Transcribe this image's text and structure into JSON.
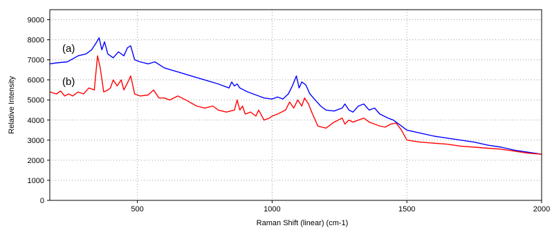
{
  "chart_data": {
    "type": "line",
    "title": "",
    "xlabel": "Raman Shift (linear) (cm-1)",
    "ylabel": "Relative Intensity",
    "xlim": [
      175,
      2000
    ],
    "ylim": [
      0,
      9500
    ],
    "x_ticks": [
      500,
      1000,
      1500,
      2000
    ],
    "y_ticks": [
      0,
      1000,
      2000,
      3000,
      4000,
      5000,
      6000,
      7000,
      8000,
      9000
    ],
    "grid": true,
    "grid_style": "dotted",
    "annotations": [
      {
        "text": "(a)",
        "series": "a"
      },
      {
        "text": "(b)",
        "series": "b"
      }
    ],
    "series": [
      {
        "key": "a",
        "color": "#0000ff",
        "x": [
          175,
          200,
          240,
          280,
          310,
          330,
          345,
          358,
          368,
          378,
          390,
          410,
          430,
          450,
          463,
          475,
          490,
          510,
          540,
          565,
          600,
          650,
          700,
          750,
          800,
          840,
          850,
          860,
          870,
          880,
          895,
          910,
          930,
          950,
          970,
          1000,
          1020,
          1040,
          1060,
          1075,
          1090,
          1100,
          1110,
          1125,
          1140,
          1160,
          1180,
          1200,
          1230,
          1260,
          1270,
          1285,
          1300,
          1320,
          1340,
          1360,
          1380,
          1400,
          1430,
          1450,
          1470,
          1500,
          1550,
          1600,
          1650,
          1700,
          1750,
          1800,
          1850,
          1900,
          1950,
          2000
        ],
        "y": [
          6800,
          6850,
          6900,
          7200,
          7300,
          7500,
          7800,
          8100,
          7500,
          7900,
          7300,
          7100,
          7400,
          7200,
          7600,
          7700,
          7000,
          6900,
          6800,
          6900,
          6600,
          6400,
          6200,
          6000,
          5800,
          5600,
          5900,
          5700,
          5800,
          5600,
          5500,
          5400,
          5300,
          5200,
          5100,
          5050,
          5150,
          5050,
          5300,
          5700,
          6200,
          5600,
          5900,
          5750,
          5300,
          5000,
          4700,
          4500,
          4450,
          4600,
          4800,
          4500,
          4400,
          4700,
          4800,
          4500,
          4600,
          4300,
          4100,
          4000,
          3800,
          3500,
          3350,
          3200,
          3100,
          3000,
          2900,
          2750,
          2650,
          2500,
          2400,
          2300
        ]
      },
      {
        "key": "b",
        "color": "#ff0000",
        "x": [
          175,
          200,
          215,
          230,
          245,
          260,
          280,
          300,
          320,
          340,
          352,
          362,
          375,
          390,
          400,
          410,
          425,
          440,
          450,
          465,
          475,
          490,
          510,
          540,
          560,
          580,
          600,
          620,
          650,
          680,
          700,
          720,
          750,
          780,
          800,
          830,
          860,
          870,
          880,
          890,
          900,
          920,
          940,
          950,
          970,
          990,
          1000,
          1020,
          1050,
          1065,
          1080,
          1095,
          1110,
          1120,
          1135,
          1150,
          1170,
          1200,
          1230,
          1260,
          1270,
          1285,
          1300,
          1320,
          1340,
          1360,
          1380,
          1400,
          1420,
          1440,
          1460,
          1480,
          1500,
          1550,
          1600,
          1650,
          1700,
          1750,
          1800,
          1850,
          1900,
          1950,
          2000
        ],
        "y": [
          5400,
          5300,
          5450,
          5200,
          5300,
          5200,
          5400,
          5300,
          5600,
          5500,
          7200,
          6600,
          5400,
          5500,
          5600,
          6000,
          5700,
          6000,
          5500,
          5900,
          6200,
          5300,
          5200,
          5250,
          5500,
          5100,
          5100,
          5000,
          5200,
          5000,
          4850,
          4700,
          4600,
          4700,
          4500,
          4400,
          4500,
          5000,
          4500,
          4700,
          4300,
          4400,
          4200,
          4500,
          4000,
          4100,
          4200,
          4300,
          4500,
          4900,
          4600,
          5000,
          4700,
          5100,
          4800,
          4300,
          3700,
          3600,
          3900,
          4100,
          3800,
          4000,
          3900,
          4000,
          4100,
          3900,
          3800,
          3700,
          3650,
          3800,
          3850,
          3500,
          3000,
          2900,
          2850,
          2800,
          2700,
          2650,
          2600,
          2550,
          2450,
          2350,
          2300
        ]
      }
    ]
  }
}
